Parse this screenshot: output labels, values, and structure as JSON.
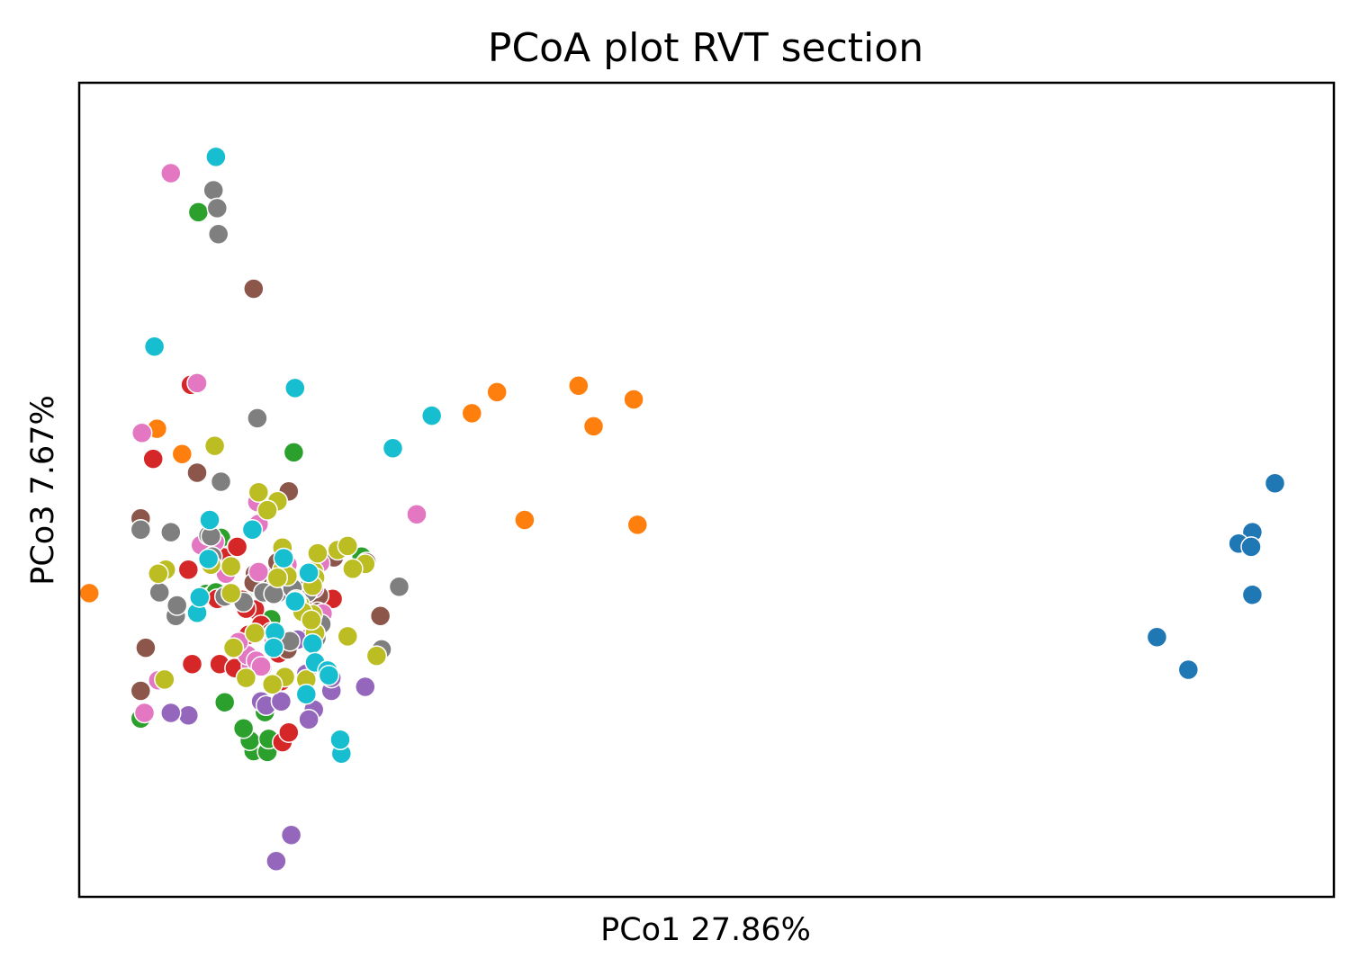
{
  "chart_data": {
    "type": "scatter",
    "title": "PCoA plot RVT section",
    "xlabel": "PCo1 27.86%",
    "ylabel": "PCo3 7.67%",
    "xlim": [
      0,
      1000
    ],
    "ylim": [
      0,
      1000
    ],
    "grid": false,
    "legend": "none",
    "ticks": "none",
    "marker_edge": "#ffffff",
    "series": [
      {
        "color": "#1f77b4",
        "points": [
          [
            953,
            508
          ],
          [
            935,
            448
          ],
          [
            924,
            434
          ],
          [
            934,
            430
          ],
          [
            935,
            371
          ],
          [
            859,
            319
          ],
          [
            884,
            279
          ]
        ]
      },
      {
        "color": "#ff7f0e",
        "points": [
          [
            313,
            594
          ],
          [
            333,
            620
          ],
          [
            398,
            628
          ],
          [
            410,
            578
          ],
          [
            442,
            611
          ],
          [
            445,
            457
          ],
          [
            445,
            457
          ],
          [
            355,
            463
          ],
          [
            8,
            373
          ],
          [
            82,
            544
          ],
          [
            82,
            544
          ],
          [
            62,
            575
          ]
        ]
      },
      {
        "color": "#2ca02c",
        "points": [
          [
            95,
            841
          ],
          [
            112,
            437
          ],
          [
            101,
            372
          ],
          [
            49,
            219
          ],
          [
            116,
            239
          ],
          [
            139,
            179
          ],
          [
            150,
            178
          ],
          [
            148,
            227
          ],
          [
            136,
            192
          ],
          [
            131,
            207
          ],
          [
            151,
            194
          ],
          [
            225,
            418
          ],
          [
            171,
            546
          ],
          [
            110,
            369
          ],
          [
            106,
            370
          ],
          [
            109,
            374
          ],
          [
            113,
            441
          ],
          [
            131,
            366
          ],
          [
            153,
            341
          ]
        ]
      },
      {
        "color": "#d62728",
        "points": [
          [
            89,
            629
          ],
          [
            59,
            538
          ],
          [
            87,
            402
          ],
          [
            110,
            366
          ],
          [
            183,
            318
          ],
          [
            126,
            431
          ],
          [
            180,
            365
          ],
          [
            120,
            407
          ],
          [
            130,
            365
          ],
          [
            135,
            322
          ],
          [
            140,
            353
          ],
          [
            145,
            334
          ],
          [
            133,
            354
          ],
          [
            151,
            380
          ],
          [
            155,
            381
          ],
          [
            153,
            325
          ],
          [
            162,
            190
          ],
          [
            90,
            286
          ],
          [
            112,
            286
          ],
          [
            124,
            281
          ],
          [
            146,
            282
          ],
          [
            159,
            299
          ],
          [
            167,
            202
          ],
          [
            161,
            265
          ],
          [
            202,
            366
          ],
          [
            115,
            417
          ],
          [
            126,
            430
          ]
        ]
      },
      {
        "color": "#9467bd",
        "points": [
          [
            169,
            76
          ],
          [
            157,
            44
          ],
          [
            145,
            240
          ],
          [
            149,
            235
          ],
          [
            161,
            240
          ],
          [
            174,
            316
          ],
          [
            187,
            230
          ],
          [
            181,
            274
          ],
          [
            201,
            253
          ],
          [
            201,
            269
          ],
          [
            228,
            258
          ],
          [
            183,
            218
          ],
          [
            158,
            398
          ],
          [
            158,
            393
          ],
          [
            87,
            223
          ],
          [
            73,
            226
          ]
        ]
      },
      {
        "color": "#8c564b",
        "points": [
          [
            49,
            465
          ],
          [
            94,
            521
          ],
          [
            139,
            747
          ],
          [
            167,
            498
          ],
          [
            158,
            411
          ],
          [
            53,
            306
          ],
          [
            49,
            253
          ],
          [
            166,
            304
          ],
          [
            229,
            411
          ],
          [
            191,
            370
          ],
          [
            191,
            408
          ],
          [
            140,
            397
          ],
          [
            190,
            350
          ],
          [
            240,
            345
          ],
          [
            142,
            390
          ],
          [
            203,
            417
          ],
          [
            139,
            386
          ]
        ]
      },
      {
        "color": "#e377c2",
        "points": [
          [
            73,
            889
          ],
          [
            94,
            631
          ],
          [
            50,
            570
          ],
          [
            108,
            436
          ],
          [
            143,
            458
          ],
          [
            142,
            485
          ],
          [
            97,
            432
          ],
          [
            63,
            266
          ],
          [
            52,
            226
          ],
          [
            117,
            397
          ],
          [
            137,
            284
          ],
          [
            134,
            297
          ],
          [
            155,
            315
          ],
          [
            141,
            290
          ],
          [
            143,
            399
          ],
          [
            176,
            370
          ],
          [
            192,
            410
          ],
          [
            166,
            408
          ],
          [
            187,
            379
          ],
          [
            127,
            313
          ],
          [
            145,
            283
          ],
          [
            269,
            470
          ],
          [
            188,
            327
          ],
          [
            194,
            348
          ]
        ]
      },
      {
        "color": "#7f7f7f",
        "points": [
          [
            107,
            868
          ],
          [
            110,
            846
          ],
          [
            111,
            814
          ],
          [
            142,
            588
          ],
          [
            113,
            510
          ],
          [
            106,
            418
          ],
          [
            103,
            444
          ],
          [
            105,
            443
          ],
          [
            131,
            362
          ],
          [
            155,
            324
          ],
          [
            193,
            335
          ],
          [
            158,
            373
          ],
          [
            147,
            374
          ],
          [
            155,
            372
          ],
          [
            176,
            376
          ],
          [
            255,
            381
          ],
          [
            189,
            318
          ],
          [
            241,
            304
          ],
          [
            182,
            374
          ],
          [
            168,
            314
          ],
          [
            116,
            369
          ],
          [
            49,
            451
          ],
          [
            73,
            448
          ],
          [
            64,
            374
          ],
          [
            77,
            345
          ],
          [
            78,
            358
          ],
          [
            170,
            379
          ]
        ]
      },
      {
        "color": "#bcbd22",
        "points": [
          [
            108,
            554
          ],
          [
            143,
            497
          ],
          [
            158,
            486
          ],
          [
            150,
            475
          ],
          [
            162,
            429
          ],
          [
            173,
            365
          ],
          [
            162,
            402
          ],
          [
            187,
            400
          ],
          [
            190,
            422
          ],
          [
            228,
            409
          ],
          [
            218,
            403
          ],
          [
            187,
            391
          ],
          [
            176,
            359
          ],
          [
            188,
            392
          ],
          [
            188,
            324
          ],
          [
            140,
            324
          ],
          [
            121,
            373
          ],
          [
            186,
            347
          ],
          [
            166,
            394
          ],
          [
            173,
            363
          ],
          [
            178,
            350
          ],
          [
            206,
            426
          ],
          [
            214,
            320
          ],
          [
            164,
            270
          ],
          [
            154,
            261
          ],
          [
            133,
            269
          ],
          [
            105,
            408
          ],
          [
            121,
            406
          ],
          [
            214,
            431
          ],
          [
            186,
            382
          ],
          [
            158,
            392
          ],
          [
            185,
            340
          ],
          [
            69,
            402
          ],
          [
            63,
            397
          ],
          [
            68,
            267
          ],
          [
            123,
            306
          ],
          [
            181,
            267
          ],
          [
            237,
            296
          ]
        ]
      },
      {
        "color": "#17becf",
        "points": [
          [
            109,
            909
          ],
          [
            60,
            676
          ],
          [
            172,
            625
          ],
          [
            104,
            463
          ],
          [
            138,
            451
          ],
          [
            163,
            416
          ],
          [
            103,
            415
          ],
          [
            172,
            363
          ],
          [
            94,
            349
          ],
          [
            96,
            368
          ],
          [
            156,
            325
          ],
          [
            155,
            306
          ],
          [
            186,
            311
          ],
          [
            181,
            249
          ],
          [
            188,
            288
          ],
          [
            198,
            278
          ],
          [
            199,
            272
          ],
          [
            209,
            176
          ],
          [
            208,
            193
          ],
          [
            281,
            591
          ],
          [
            250,
            551
          ],
          [
            183,
            398
          ]
        ]
      }
    ]
  }
}
